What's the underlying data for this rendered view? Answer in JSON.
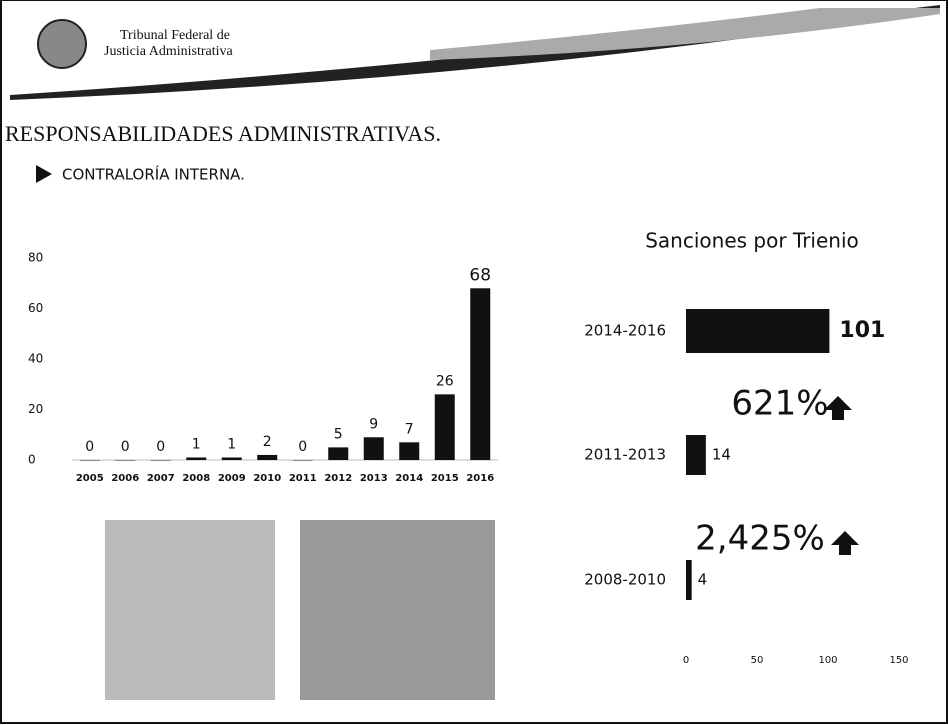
{
  "header": {
    "institution_line1": "Tribunal Federal de",
    "institution_line2": "Justicia Administrativa",
    "title": "RESPONSABILIDADES ADMINISTRATIVAS.",
    "subtitle": "CONTRALORÍA INTERNA."
  },
  "chart_data": [
    {
      "type": "bar",
      "categories": [
        "2005",
        "2006",
        "2007",
        "2008",
        "2009",
        "2010",
        "2011",
        "2012",
        "2013",
        "2014",
        "2015",
        "2016"
      ],
      "values": [
        0,
        0,
        0,
        1,
        1,
        2,
        0,
        5,
        9,
        7,
        26,
        68
      ],
      "color": "#111111",
      "ylim": [
        0,
        80
      ],
      "yticks": [
        0,
        20,
        40,
        60,
        80
      ],
      "grid": false
    },
    {
      "type": "barh",
      "title": "Sanciones por Trienio",
      "categories": [
        "2014-2016",
        "2011-2013",
        "2008-2010"
      ],
      "values": [
        101,
        14,
        4
      ],
      "color": "#111111",
      "xlim": [
        0,
        150
      ],
      "xticks": [
        0,
        50,
        100,
        150
      ],
      "grid": false,
      "annotations": [
        "621%",
        "2,425%"
      ]
    }
  ]
}
